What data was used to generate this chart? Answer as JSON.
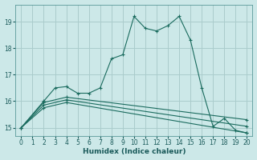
{
  "xlabel": "Humidex (Indice chaleur)",
  "bg_color": "#cce8e8",
  "grid_color": "#aacccc",
  "line_color": "#1a6b5e",
  "xlim": [
    -0.5,
    20.5
  ],
  "ylim": [
    14.7,
    19.65
  ],
  "yticks": [
    15,
    16,
    17,
    18,
    19
  ],
  "xticks": [
    0,
    1,
    2,
    3,
    4,
    5,
    6,
    7,
    8,
    9,
    10,
    11,
    12,
    13,
    14,
    15,
    16,
    17,
    18,
    19,
    20
  ],
  "lines": [
    {
      "x": [
        0,
        2,
        3,
        4,
        5,
        6,
        7,
        8,
        9,
        10,
        11,
        12,
        13,
        14,
        15,
        16,
        17,
        18,
        19,
        20
      ],
      "y": [
        15.0,
        16.0,
        16.5,
        16.55,
        16.3,
        16.3,
        16.5,
        17.6,
        17.75,
        19.2,
        18.75,
        18.65,
        18.85,
        19.2,
        18.3,
        16.5,
        15.05,
        15.35,
        14.9,
        14.8
      ]
    },
    {
      "x": [
        0,
        2,
        4,
        20
      ],
      "y": [
        15.0,
        15.95,
        16.15,
        15.3
      ]
    },
    {
      "x": [
        0,
        2,
        4,
        20
      ],
      "y": [
        15.0,
        15.85,
        16.05,
        15.05
      ]
    },
    {
      "x": [
        0,
        2,
        4,
        20
      ],
      "y": [
        15.0,
        15.75,
        15.95,
        14.8
      ]
    }
  ]
}
